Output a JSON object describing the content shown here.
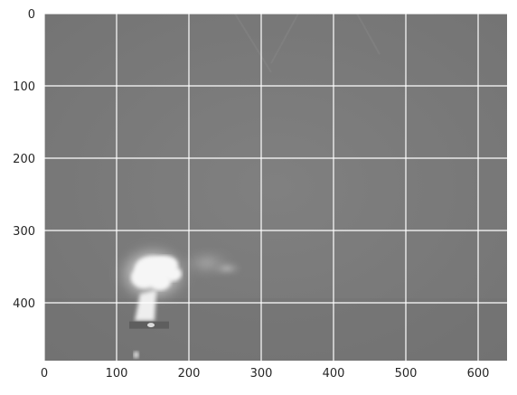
{
  "image": {
    "kind": "grayscale-frame",
    "description_tag": "flame-plume",
    "background_gray": "#7a7a7a",
    "grid_color": "#ffffff",
    "tick_color": "#262626"
  },
  "chart_data": {
    "type": "image",
    "title": "",
    "xlabel": "",
    "ylabel": "",
    "xlim": [
      0,
      640
    ],
    "ylim": [
      480,
      0
    ],
    "grid": true,
    "x_ticks": [
      0,
      100,
      200,
      300,
      400,
      500,
      600
    ],
    "y_ticks": [
      0,
      100,
      200,
      300,
      400
    ],
    "x_tick_labels": [
      "0",
      "100",
      "200",
      "300",
      "400",
      "500",
      "600"
    ],
    "y_tick_labels": [
      "0",
      "100",
      "200",
      "300",
      "400"
    ],
    "features": [
      {
        "name": "bright-plume-core",
        "x": 150,
        "y": 360,
        "intensity": 1.0
      },
      {
        "name": "plume-stem",
        "x": 140,
        "y": 405,
        "intensity": 0.95
      },
      {
        "name": "smoke-wisp",
        "x": 225,
        "y": 345,
        "intensity": 0.7
      },
      {
        "name": "base-platform",
        "x": 145,
        "y": 432,
        "intensity": 0.6
      },
      {
        "name": "ember-dot",
        "x": 127,
        "y": 472,
        "intensity": 0.9
      }
    ]
  }
}
